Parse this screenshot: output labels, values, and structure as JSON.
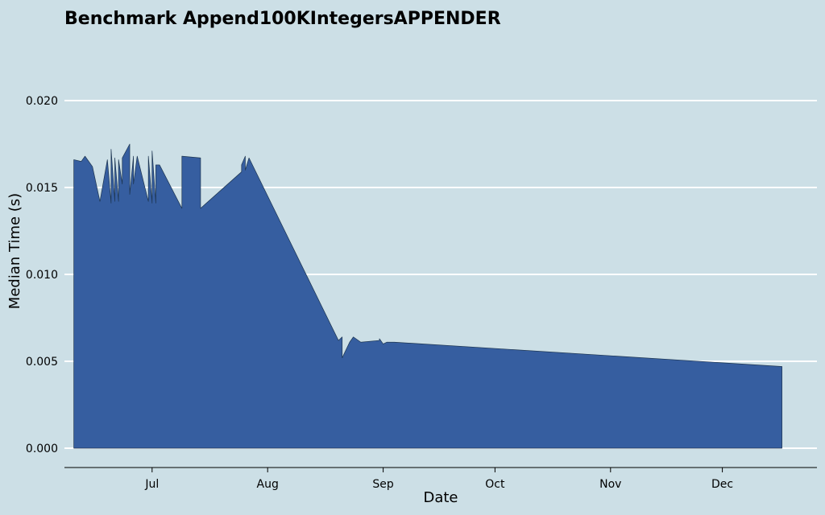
{
  "chart_data": {
    "type": "area",
    "title": "Benchmark Append100KIntegersAPPENDER",
    "xlabel": "Date",
    "ylabel": "Median Time (s)",
    "ylim": [
      0,
      0.02
    ],
    "yticks": [
      "0.000",
      "0.005",
      "0.010",
      "0.015",
      "0.020"
    ],
    "xticks": [
      "Jul",
      "Aug",
      "Sep",
      "Oct",
      "Nov",
      "Dec"
    ],
    "grid": "horizontal",
    "legend": "none",
    "fill_color": "#365ea0",
    "background_color": "#ccdfe6",
    "series": [
      {
        "x": [
          "2023-06-10",
          "2023-06-12",
          "2023-06-13",
          "2023-06-15",
          "2023-06-17",
          "2023-06-19",
          "2023-06-20",
          "2023-06-20",
          "2023-06-21",
          "2023-06-21",
          "2023-06-22",
          "2023-06-22",
          "2023-06-23",
          "2023-06-23",
          "2023-06-25",
          "2023-06-25",
          "2023-06-26",
          "2023-06-26",
          "2023-06-27",
          "2023-06-30",
          "2023-06-30",
          "2023-07-01",
          "2023-07-01",
          "2023-07-02",
          "2023-07-02",
          "2023-07-03",
          "2023-07-09",
          "2023-07-09",
          "2023-07-14",
          "2023-07-14",
          "2023-07-25",
          "2023-07-25",
          "2023-07-26",
          "2023-07-26",
          "2023-07-27",
          "2023-08-20",
          "2023-08-21",
          "2023-08-21",
          "2023-08-23",
          "2023-08-24",
          "2023-08-26",
          "2023-08-26",
          "2023-08-31",
          "2023-08-31",
          "2023-09-01",
          "2023-09-02",
          "2023-09-04",
          "2023-12-17"
        ],
        "y": [
          0.0166,
          0.0165,
          0.0168,
          0.0162,
          0.0142,
          0.0166,
          0.0141,
          0.0172,
          0.0142,
          0.0167,
          0.0142,
          0.0166,
          0.0152,
          0.0167,
          0.0175,
          0.0146,
          0.0168,
          0.0152,
          0.0168,
          0.0142,
          0.0168,
          0.0141,
          0.0171,
          0.0141,
          0.0163,
          0.0163,
          0.0138,
          0.0168,
          0.0167,
          0.0138,
          0.0159,
          0.0163,
          0.0168,
          0.016,
          0.0167,
          0.0062,
          0.0064,
          0.0052,
          0.0061,
          0.0064,
          0.0061,
          0.0061,
          0.0062,
          0.0063,
          0.006,
          0.0061,
          0.0061,
          0.0047
        ]
      }
    ]
  }
}
